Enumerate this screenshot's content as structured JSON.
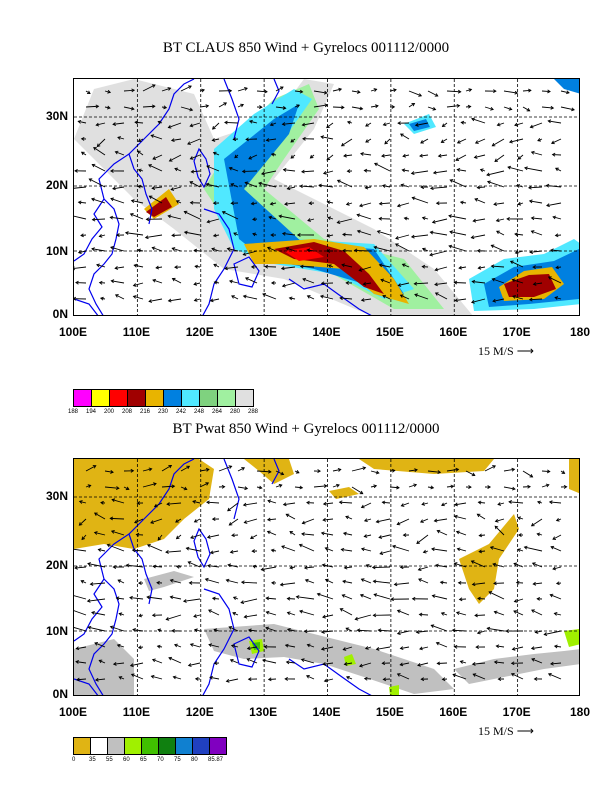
{
  "panel1": {
    "title": "BT CLAUS 850 Wind + Gyrelocs 001112/0000",
    "y_ticks": [
      "30N",
      "20N",
      "10N",
      "0N"
    ],
    "x_ticks": [
      "100E",
      "110E",
      "120E",
      "130E",
      "140E",
      "150E",
      "160E",
      "170E",
      "180"
    ],
    "vector_scale": "15 M/S",
    "colorbar": {
      "colors": [
        "#ff00ff",
        "#ffff00",
        "#ff0000",
        "#a00000",
        "#e8b400",
        "#0080e0",
        "#50e8ff",
        "#7fd27f",
        "#a0f0a0",
        "#e0e0e0"
      ],
      "labels": [
        "188",
        "194",
        "200",
        "208",
        "216",
        "230",
        "242",
        "248",
        "264",
        "280",
        "288"
      ]
    }
  },
  "panel2": {
    "title": "BT Pwat 850 Wind + Gyrelocs 001112/0000",
    "y_ticks": [
      "30N",
      "20N",
      "10N",
      "0N"
    ],
    "x_ticks": [
      "100E",
      "110E",
      "120E",
      "130E",
      "140E",
      "150E",
      "160E",
      "170E",
      "180"
    ],
    "vector_scale": "15 M/S",
    "colorbar": {
      "colors": [
        "#e0b414",
        "#ffffff",
        "#c0c0c0",
        "#a0f000",
        "#40c000",
        "#108010",
        "#1080d0",
        "#2040c0",
        "#8000c0"
      ],
      "labels": [
        "0",
        "35",
        "55",
        "60",
        "65",
        "70",
        "75",
        "80",
        "85.87"
      ]
    }
  }
}
